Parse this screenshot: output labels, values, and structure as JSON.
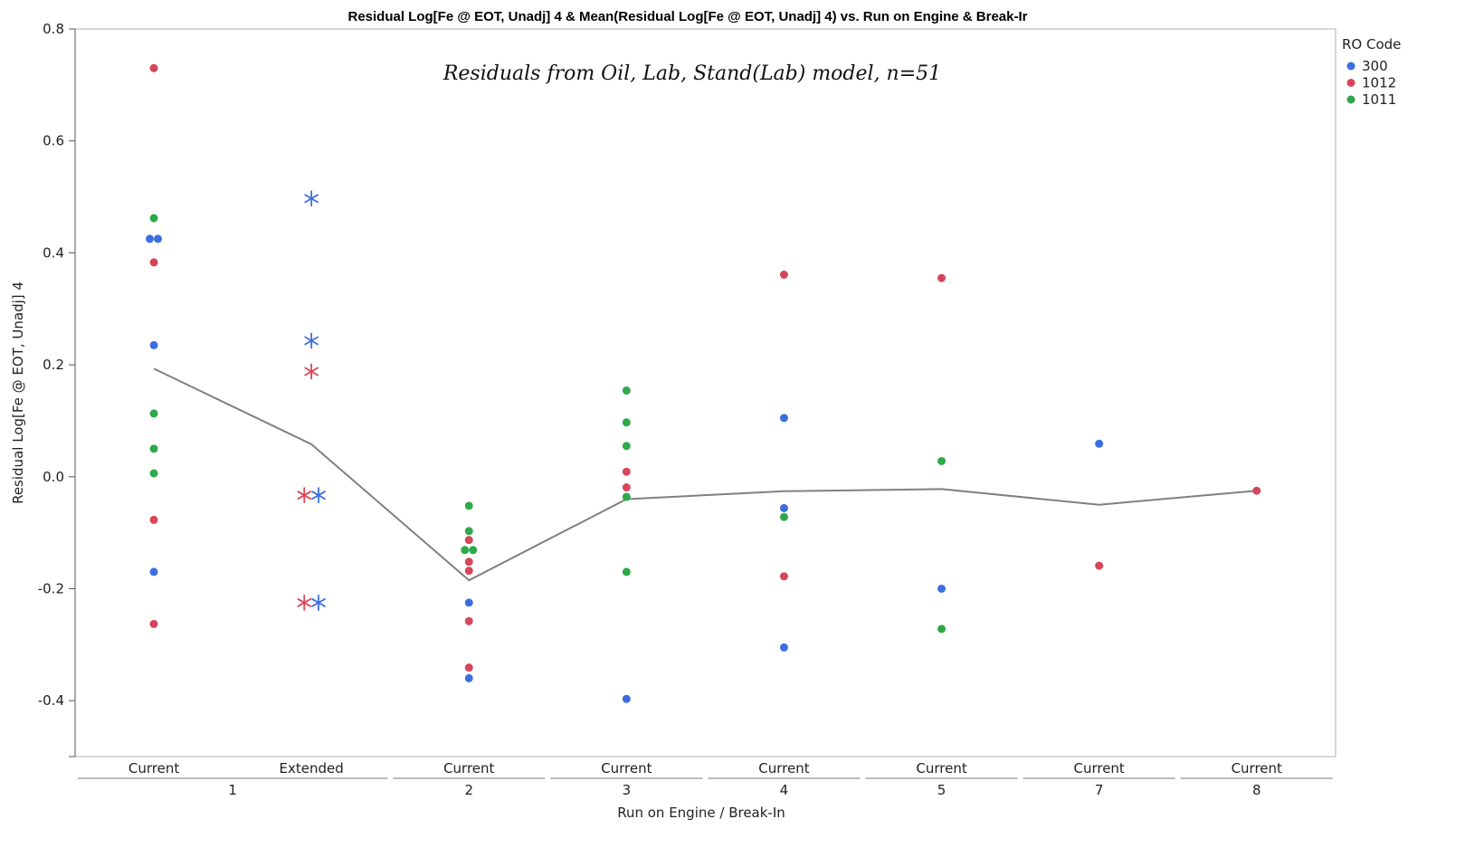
{
  "chart_data": {
    "type": "scatter",
    "title": "Residual Log[Fe @ EOT, Unadj] 4 & Mean(Residual Log[Fe @ EOT, Unadj] 4) vs. Run on Engine & Break-Ir",
    "annotation": "Residuals from Oil, Lab, Stand(Lab) model, n=51",
    "xlabel": "Run on Engine / Break-In",
    "ylabel": "Residual Log[Fe @ EOT, Unadj] 4",
    "ylim": [
      -0.5,
      0.8
    ],
    "yticks": [
      "0.8",
      "0.6",
      "0.4",
      "0.2",
      "0.0",
      "-0.2",
      "-0.4"
    ],
    "ytick_values": [
      0.8,
      0.6,
      0.4,
      0.2,
      0.0,
      -0.2,
      -0.4
    ],
    "grid": false,
    "legend_placement": "top-right",
    "legend_title": "RO Code",
    "categories": [
      "Current",
      "Extended",
      "Current",
      "Current",
      "Current",
      "Current",
      "Current",
      "Current"
    ],
    "groups": [
      {
        "label": "1",
        "category_indices": [
          0,
          1
        ]
      },
      {
        "label": "2",
        "category_indices": [
          2
        ]
      },
      {
        "label": "3",
        "category_indices": [
          3
        ]
      },
      {
        "label": "4",
        "category_indices": [
          4
        ]
      },
      {
        "label": "5",
        "category_indices": [
          5
        ]
      },
      {
        "label": "7",
        "category_indices": [
          6
        ]
      },
      {
        "label": "8",
        "category_indices": [
          7
        ]
      }
    ],
    "series": [
      {
        "name": "300",
        "color": "#3b6ee0",
        "points": [
          {
            "x": 0,
            "dx": -0.2,
            "y": 0.425
          },
          {
            "x": 0,
            "dx": 0.2,
            "y": 0.425
          },
          {
            "x": 0,
            "y": 0.235
          },
          {
            "x": 0,
            "y": -0.17
          },
          {
            "x": 1,
            "y": 0.497,
            "marker": "star"
          },
          {
            "x": 1,
            "y": 0.243,
            "marker": "star"
          },
          {
            "x": 1,
            "dx": 0.35,
            "y": -0.033,
            "marker": "star"
          },
          {
            "x": 1,
            "dx": 0.35,
            "y": -0.225,
            "marker": "star"
          },
          {
            "x": 2,
            "y": -0.225
          },
          {
            "x": 2,
            "y": -0.36
          },
          {
            "x": 3,
            "y": -0.397
          },
          {
            "x": 4,
            "y": 0.105
          },
          {
            "x": 4,
            "y": -0.056
          },
          {
            "x": 4,
            "y": -0.305
          },
          {
            "x": 5,
            "y": -0.2
          },
          {
            "x": 6,
            "y": 0.059
          }
        ]
      },
      {
        "name": "1012",
        "color": "#d6465a",
        "points": [
          {
            "x": 0,
            "y": 0.73
          },
          {
            "x": 0,
            "y": 0.383
          },
          {
            "x": 0,
            "y": -0.077
          },
          {
            "x": 0,
            "y": -0.263
          },
          {
            "x": 1,
            "y": 0.188,
            "marker": "star"
          },
          {
            "x": 1,
            "dx": -0.35,
            "y": -0.033,
            "marker": "star"
          },
          {
            "x": 1,
            "dx": -0.35,
            "y": -0.225,
            "marker": "star"
          },
          {
            "x": 2,
            "y": -0.113
          },
          {
            "x": 2,
            "y": -0.152
          },
          {
            "x": 2,
            "y": -0.168
          },
          {
            "x": 2,
            "y": -0.258
          },
          {
            "x": 2,
            "y": -0.341
          },
          {
            "x": 3,
            "y": 0.009
          },
          {
            "x": 3,
            "y": -0.019
          },
          {
            "x": 4,
            "y": 0.361
          },
          {
            "x": 4,
            "y": -0.178
          },
          {
            "x": 5,
            "y": 0.355
          },
          {
            "x": 6,
            "y": -0.159
          },
          {
            "x": 7,
            "y": -0.025
          }
        ]
      },
      {
        "name": "1011",
        "color": "#2fa84a",
        "points": [
          {
            "x": 0,
            "y": 0.462
          },
          {
            "x": 0,
            "y": 0.113
          },
          {
            "x": 0,
            "y": 0.05
          },
          {
            "x": 0,
            "y": 0.006
          },
          {
            "x": 2,
            "y": -0.052
          },
          {
            "x": 2,
            "y": -0.097
          },
          {
            "x": 2,
            "dx": -0.2,
            "y": -0.131
          },
          {
            "x": 2,
            "dx": 0.2,
            "y": -0.131
          },
          {
            "x": 3,
            "y": 0.154
          },
          {
            "x": 3,
            "y": 0.097
          },
          {
            "x": 3,
            "y": 0.055
          },
          {
            "x": 3,
            "y": -0.036
          },
          {
            "x": 3,
            "y": -0.17
          },
          {
            "x": 4,
            "y": -0.072
          },
          {
            "x": 5,
            "y": 0.028
          },
          {
            "x": 5,
            "y": -0.272
          }
        ]
      }
    ],
    "mean_line": {
      "color": "#808080",
      "values": [
        0.193,
        0.058,
        -0.185,
        -0.04,
        -0.026,
        -0.022,
        -0.05,
        -0.025
      ]
    }
  }
}
